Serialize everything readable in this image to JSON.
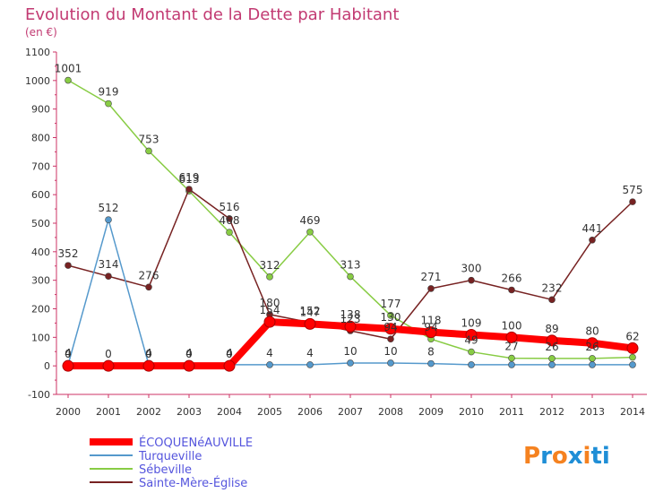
{
  "chart_data": {
    "type": "line",
    "title": "Evolution du Montant de la Dette par Habitant",
    "subtitle": "(en €)",
    "x": [
      "2000",
      "2001",
      "2002",
      "2003",
      "2004",
      "2005",
      "2006",
      "2007",
      "2008",
      "2009",
      "2010",
      "2011",
      "2012",
      "2013",
      "2014"
    ],
    "ylim": [
      -100,
      1100
    ],
    "yticks": [
      -100,
      0,
      100,
      200,
      300,
      400,
      500,
      600,
      700,
      800,
      900,
      1000,
      1100
    ],
    "grid": false,
    "legend_position": "bottom-left",
    "series": [
      {
        "name": "ÉCOQUENéAUVILLE",
        "color": "#ff0000",
        "values": [
          0,
          0,
          0,
          0,
          0,
          154,
          147,
          138,
          130,
          118,
          109,
          100,
          89,
          80,
          62
        ],
        "labels": [
          "0",
          "0",
          "0",
          "0",
          "0",
          "154",
          "147",
          "138",
          "130",
          "118",
          "109",
          "100",
          "89",
          "80",
          "62"
        ]
      },
      {
        "name": "Turqueville",
        "color": "#5599cc",
        "values": [
          4,
          512,
          4,
          4,
          4,
          4,
          4,
          10,
          10,
          8,
          4,
          4,
          4,
          4,
          4
        ],
        "labels": [
          "4",
          "512",
          "4",
          "4",
          "4",
          "4",
          "4",
          "10",
          "10",
          "8",
          "",
          "",
          "",
          "",
          ""
        ]
      },
      {
        "name": "Sébeville",
        "color": "#88cc44",
        "values": [
          1001,
          919,
          753,
          613,
          468,
          312,
          469,
          313,
          177,
          94,
          49,
          27,
          26,
          26,
          30
        ],
        "labels": [
          "1001",
          "919",
          "753",
          "613",
          "468",
          "312",
          "469",
          "313",
          "177",
          "94",
          "49",
          "27",
          "26",
          "26",
          ""
        ]
      },
      {
        "name": "Sainte-Mère-Église",
        "color": "#772222",
        "values": [
          352,
          314,
          276,
          619,
          516,
          180,
          152,
          123,
          94,
          271,
          300,
          266,
          232,
          441,
          575
        ],
        "labels": [
          "352",
          "314",
          "276",
          "619",
          "516",
          "180",
          "152",
          "123",
          "94",
          "271",
          "300",
          "266",
          "232",
          "441",
          "575"
        ]
      }
    ]
  },
  "brand": {
    "text": "Proxiti",
    "colors": [
      "#f58220",
      "#1f8ed6",
      "#f58220",
      "#1f8ed6",
      "#f58220",
      "#1f8ed6",
      "#1f8ed6"
    ]
  }
}
